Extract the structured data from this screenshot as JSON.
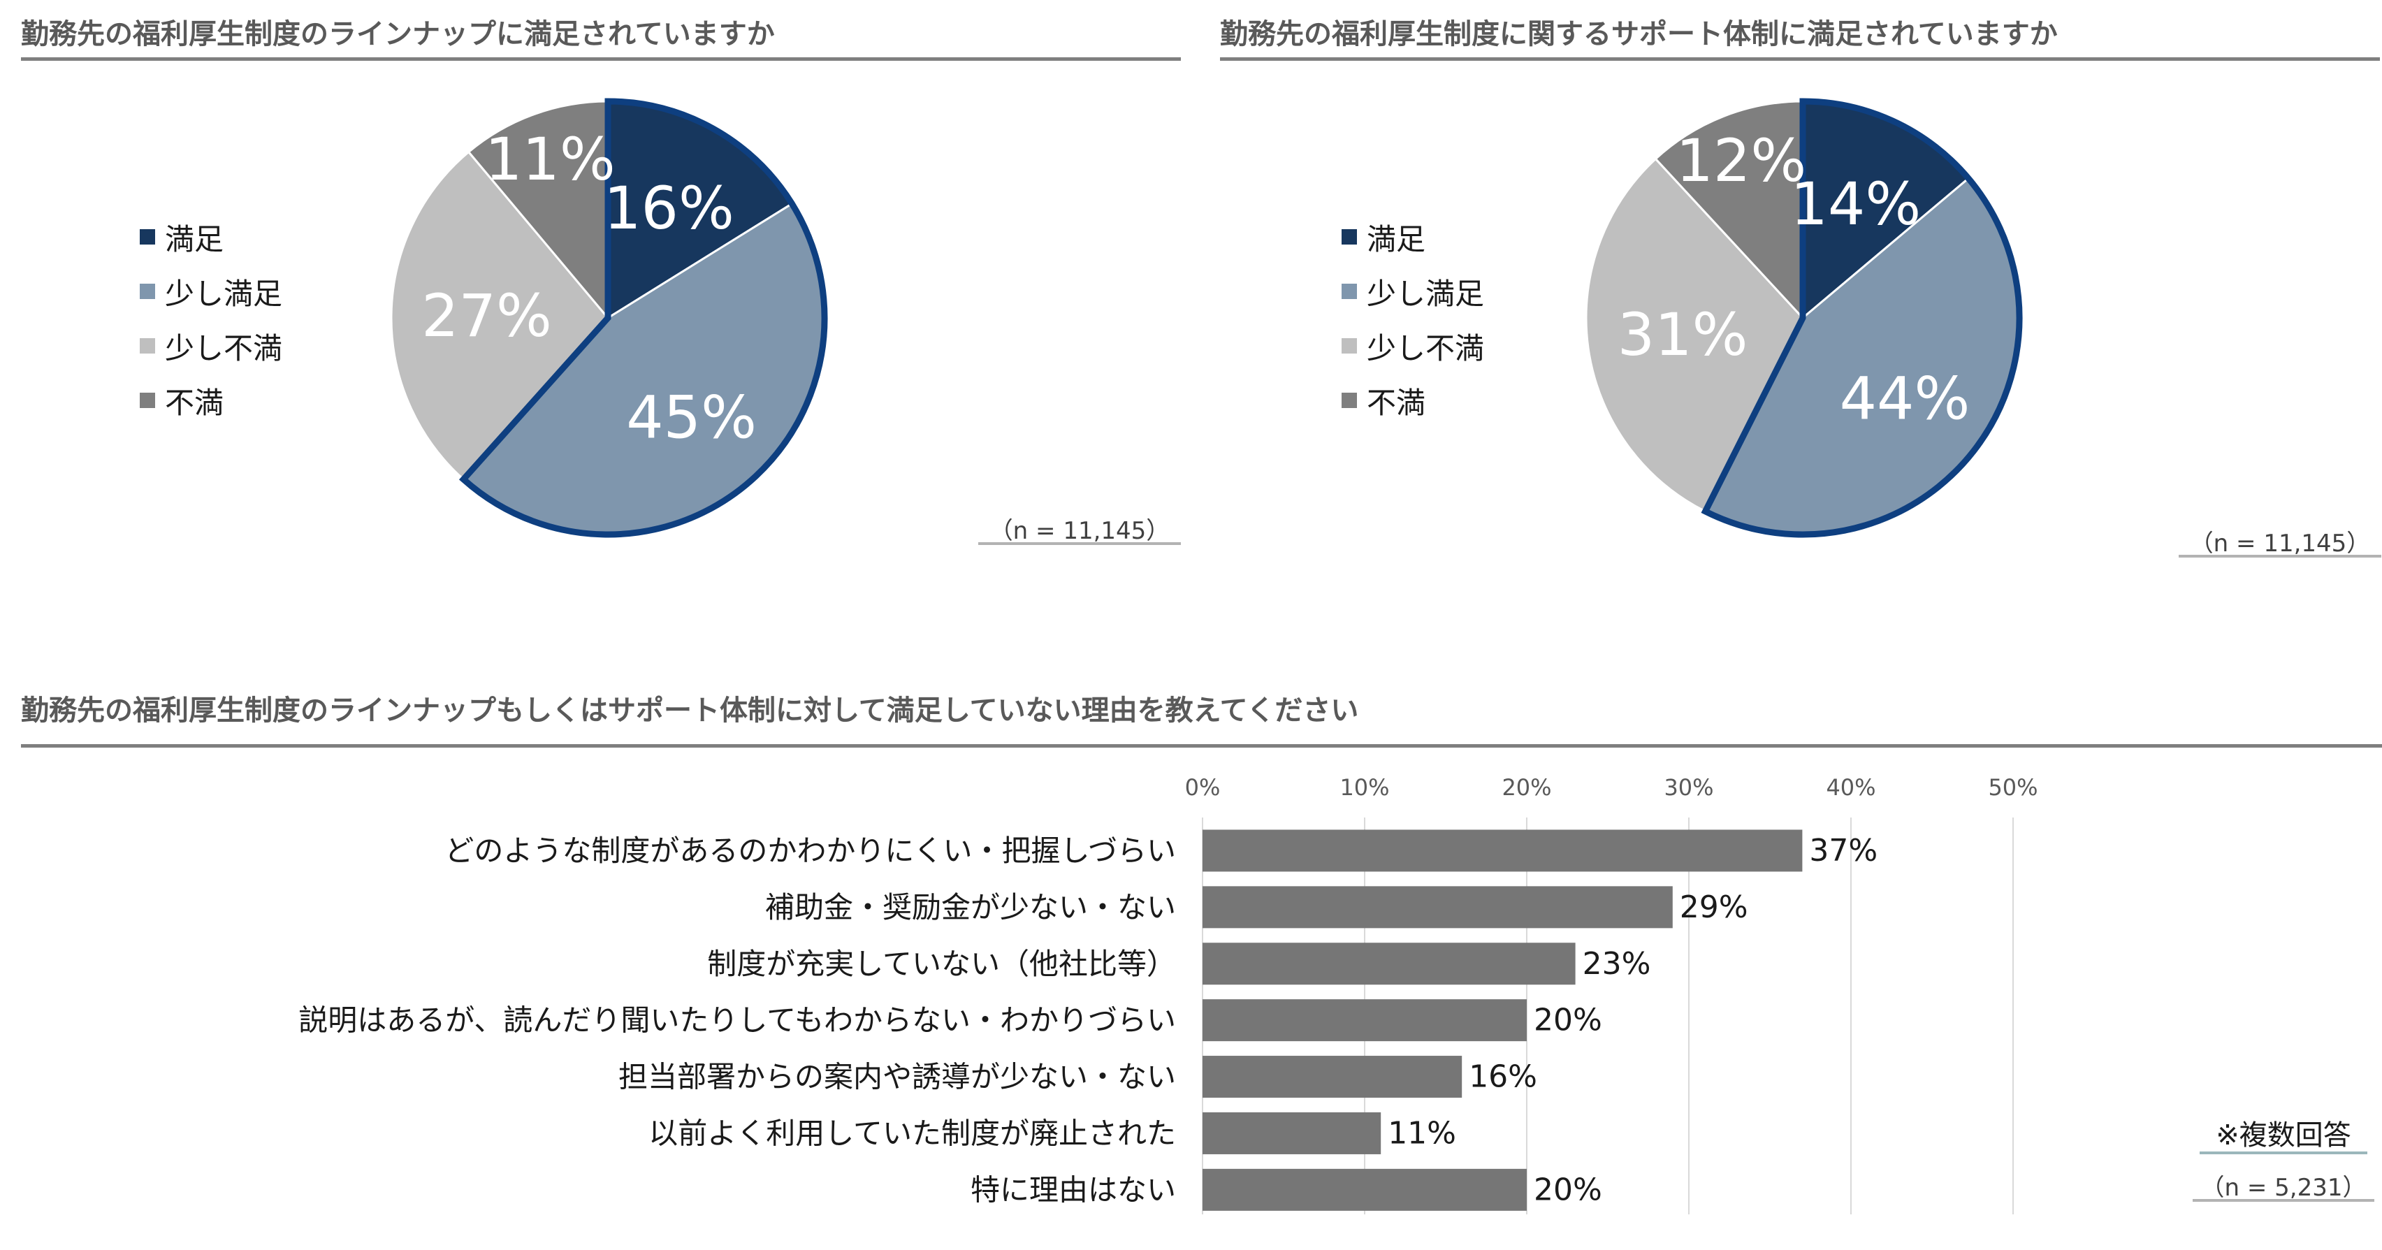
{
  "pie1": {
    "title": "勤務先の福利厚生制度のラインナップに満足されていますか",
    "n_note": "（n = 11,145）"
  },
  "pie2": {
    "title": "勤務先の福利厚生制度に関するサポート体制に満足されていますか",
    "n_note": "（n = 11,145）"
  },
  "legend": {
    "items": [
      {
        "label": "満足",
        "color": "#17375e"
      },
      {
        "label": "少し満足",
        "color": "#7f96ad"
      },
      {
        "label": "少し不満",
        "color": "#bfbfbf"
      },
      {
        "label": "不満",
        "color": "#7f7f7f"
      }
    ]
  },
  "bar": {
    "title": "勤務先の福利厚生制度のラインナップもしくはサポート体制に対して満足していない理由を教えてください",
    "multi_note": "※複数回答",
    "n_note": "（n = 5,231）",
    "bar_color": "#767676",
    "grid_color": "#d9d9d9"
  },
  "chart_data": [
    {
      "type": "pie",
      "title": "勤務先の福利厚生制度のラインナップに満足されていますか",
      "categories": [
        "満足",
        "少し満足",
        "少し不満",
        "不満"
      ],
      "values": [
        16,
        45,
        27,
        11
      ],
      "labels": [
        "16%",
        "45%",
        "27%",
        "11%"
      ],
      "colors": [
        "#17375e",
        "#7f96ad",
        "#bfbfbf",
        "#7f7f7f"
      ],
      "highlight": [
        "満足",
        "少し満足"
      ],
      "highlight_color": "#0e3f80",
      "legend": "left"
    },
    {
      "type": "pie",
      "title": "勤務先の福利厚生制度に関するサポート体制に満足されていますか",
      "categories": [
        "満足",
        "少し満足",
        "少し不満",
        "不満"
      ],
      "values": [
        14,
        44,
        31,
        12
      ],
      "labels": [
        "14%",
        "44%",
        "31%",
        "12%"
      ],
      "colors": [
        "#17375e",
        "#7f96ad",
        "#bfbfbf",
        "#7f7f7f"
      ],
      "highlight": [
        "満足",
        "少し満足"
      ],
      "highlight_color": "#0e3f80",
      "legend": "left"
    },
    {
      "type": "bar",
      "orientation": "horizontal",
      "title": "勤務先の福利厚生制度のラインナップもしくはサポート体制に対して満足していない理由を教えてください",
      "categories": [
        "どのような制度があるのかわかりにくい・把握しづらい",
        "補助金・奨励金が少ない・ない",
        "制度が充実していない（他社比等）",
        "説明はあるが、読んだり聞いたりしてもわからない・わかりづらい",
        "担当部署からの案内や誘導が少ない・ない",
        "以前よく利用していた制度が廃止された",
        "特に理由はない"
      ],
      "values": [
        37,
        29,
        23,
        20,
        16,
        11,
        20
      ],
      "value_labels": [
        "37%",
        "29%",
        "23%",
        "20%",
        "16%",
        "11%",
        "20%"
      ],
      "xlim": [
        0,
        50
      ],
      "ticks": [
        0,
        10,
        20,
        30,
        40,
        50
      ],
      "tick_labels": [
        "0%",
        "10%",
        "20%",
        "30%",
        "40%",
        "50%"
      ],
      "grid": true
    }
  ]
}
